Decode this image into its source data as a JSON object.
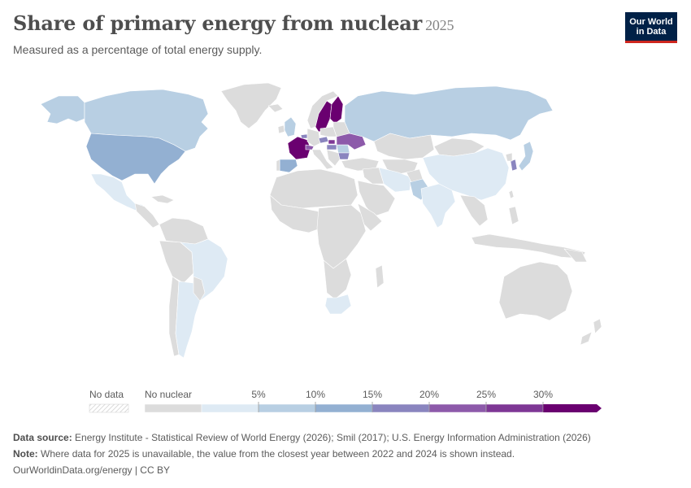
{
  "header": {
    "title": "Share of primary energy from nuclear",
    "year": "2025",
    "subtitle": "Measured as a percentage of total energy supply."
  },
  "logo": {
    "line1": "Our World",
    "line2": "in Data",
    "bg_color": "#002147",
    "accent_color": "#ce261e"
  },
  "legend": {
    "no_data_label": "No data",
    "no_nuclear_label": "No nuclear",
    "ticks": [
      "5%",
      "10%",
      "15%",
      "20%",
      "25%",
      "30%"
    ],
    "colors": {
      "no_data": "#e9e9e9",
      "no_nuclear": "#dcdcdc",
      "bins": [
        "#deeaf4",
        "#b8cfe3",
        "#93b0d2",
        "#8a85bf",
        "#8d5aaa",
        "#7e3795",
        "#6a0070"
      ]
    }
  },
  "footer": {
    "source_label": "Data source:",
    "source_text": "Energy Institute - Statistical Review of World Energy (2026); Smil (2017); U.S. Energy Information Administration (2026)",
    "note_label": "Note:",
    "note_text": "Where data for 2025 is unavailable, the value from the closest year between 2022 and 2024 is shown instead.",
    "link_text": "OurWorldinData.org/energy",
    "license": "| CC BY"
  },
  "map_data": {
    "indicator": "Share of primary energy from nuclear",
    "unit": "%",
    "year": 2025,
    "countries": [
      {
        "name": "United States",
        "bin": "10-15%"
      },
      {
        "name": "Canada",
        "bin": "5-10%"
      },
      {
        "name": "Mexico",
        "bin": "0-5%"
      },
      {
        "name": "Brazil",
        "bin": "0-5%"
      },
      {
        "name": "Argentina",
        "bin": "0-5%"
      },
      {
        "name": "Russia",
        "bin": "5-10%"
      },
      {
        "name": "China",
        "bin": "0-5%"
      },
      {
        "name": "India",
        "bin": "0-5%"
      },
      {
        "name": "Pakistan",
        "bin": "5-10%"
      },
      {
        "name": "Iran",
        "bin": "0-5%"
      },
      {
        "name": "Japan",
        "bin": "5-10%"
      },
      {
        "name": "South Korea",
        "bin": "15-20%"
      },
      {
        "name": "South Africa",
        "bin": "0-5%"
      },
      {
        "name": "France",
        "bin": ">30%"
      },
      {
        "name": "Spain",
        "bin": "10-15%"
      },
      {
        "name": "United Kingdom",
        "bin": "5-10%"
      },
      {
        "name": "Sweden",
        "bin": ">30%"
      },
      {
        "name": "Finland",
        "bin": ">30%"
      },
      {
        "name": "Ukraine",
        "bin": "20-25%"
      },
      {
        "name": "Czechia",
        "bin": "15-20%"
      },
      {
        "name": "Slovakia",
        "bin": "25-30%"
      },
      {
        "name": "Hungary",
        "bin": "15-20%"
      },
      {
        "name": "Bulgaria",
        "bin": "15-20%"
      },
      {
        "name": "Switzerland",
        "bin": "20-25%"
      },
      {
        "name": "Belgium",
        "bin": "15-20%"
      },
      {
        "name": "Romania",
        "bin": "5-10%"
      },
      {
        "name": "Australia",
        "bin": "No nuclear"
      }
    ]
  }
}
